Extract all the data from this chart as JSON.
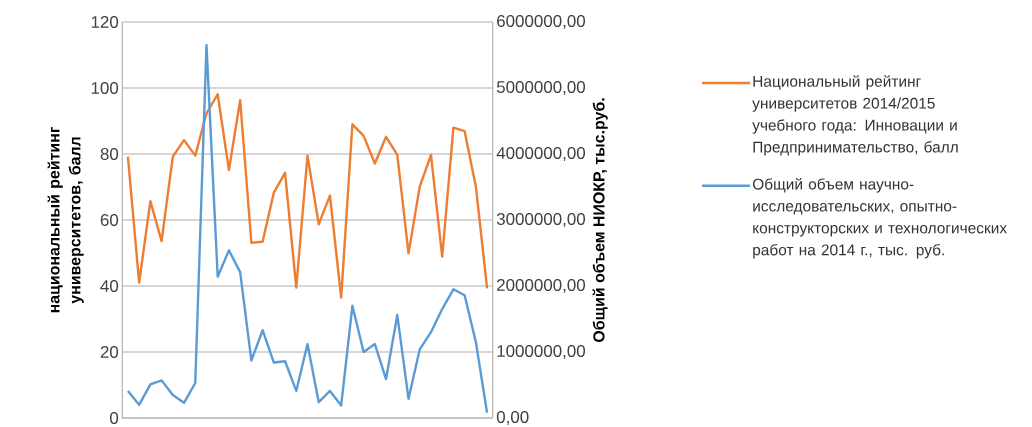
{
  "chart_data": {
    "type": "line",
    "categories": [
      null,
      null,
      null,
      null,
      null,
      null,
      null,
      null,
      null,
      null,
      null,
      null,
      null,
      null,
      null,
      null,
      null,
      null,
      null,
      null,
      null,
      null,
      null,
      null,
      null,
      null,
      null,
      null,
      null,
      null,
      null,
      null,
      null
    ],
    "series": [
      {
        "name": "Национальный рейтинг университетов 2014/2015 учебного года: Инновации и Предпринимательство, балл",
        "color": "#ed7d31",
        "values": [
          79.2,
          41.0,
          65.7,
          53.6,
          79.2,
          84.2,
          79.5,
          92.3,
          98.1,
          75.1,
          96.3,
          53.1,
          53.4,
          68.3,
          74.3,
          39.5,
          79.5,
          58.7,
          67.4,
          36.5,
          89.0,
          85.5,
          77.1,
          85.2,
          79.7,
          49.9,
          70.1,
          79.7,
          48.9,
          88.0,
          86.9,
          70.1,
          39.3
        ]
      },
      {
        "name": "Общий объем научно-исследовательских, опытно-конструкторских и технологических работ на 2014 г., тыс. руб.",
        "color": "#5b9bd5",
        "axis": "y2",
        "values": [
          410000,
          200000,
          510000,
          570000,
          350000,
          230000,
          530000,
          5650000,
          2140000,
          2540000,
          2210000,
          870000,
          1330000,
          840000,
          860000,
          410000,
          1120000,
          240000,
          410000,
          190000,
          1700000,
          1000000,
          1120000,
          590000,
          1560000,
          290000,
          1040000,
          1300000,
          1650000,
          1950000,
          1860000,
          1150000,
          80000
        ]
      }
    ],
    "ylabel": "национальный рейтинг университетов, балл",
    "y2label": "Общий объем НИОКР, тыс.руб.",
    "ylim": [
      0,
      120
    ],
    "yticks": [
      0,
      20,
      40,
      60,
      80,
      100,
      120
    ],
    "y2lim": [
      0,
      6000000
    ],
    "y2ticks": [
      {
        "value": 0,
        "label": "0,00"
      },
      {
        "value": 1000000,
        "label": "1000000,00"
      },
      {
        "value": 2000000,
        "label": "2000000,00"
      },
      {
        "value": 3000000,
        "label": "3000000,00"
      },
      {
        "value": 4000000,
        "label": "4000000,00"
      },
      {
        "value": 5000000,
        "label": "5000000,00"
      },
      {
        "value": 6000000,
        "label": "6000000,00"
      }
    ],
    "grid": "y",
    "legend": "right"
  }
}
